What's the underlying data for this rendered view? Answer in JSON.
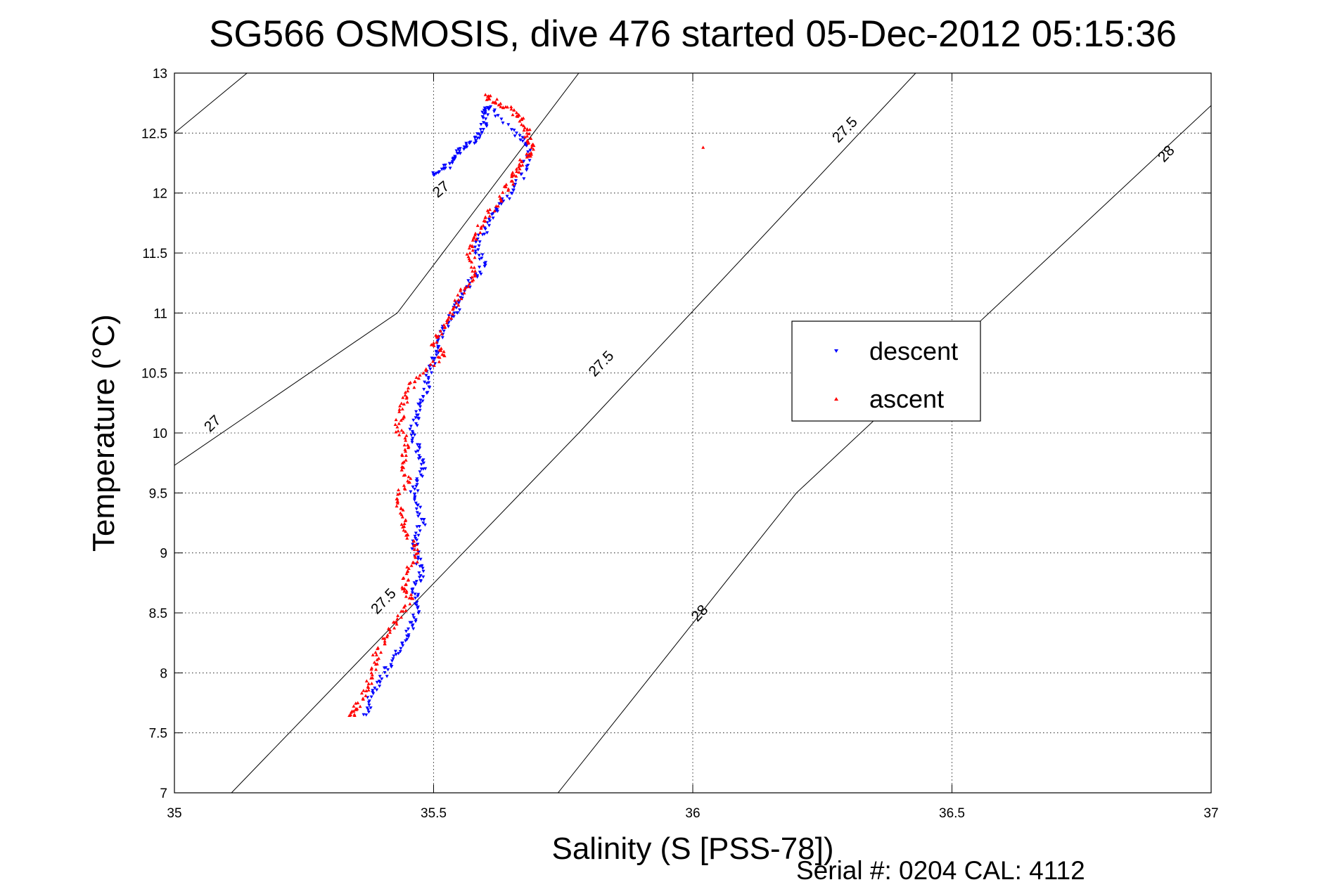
{
  "chart_data": {
    "type": "scatter",
    "title": "SG566 OSMOSIS, dive 476 started 05-Dec-2012 05:15:36",
    "xlabel": "Salinity (S [PSS-78])",
    "ylabel": "Temperature (°C)",
    "xlim": [
      35,
      37
    ],
    "ylim": [
      7,
      13
    ],
    "xticks": [
      35,
      35.5,
      36,
      36.5,
      37
    ],
    "xtick_labels": [
      "35",
      "35.5",
      "36",
      "36.5",
      "37"
    ],
    "yticks": [
      7,
      7.5,
      8,
      8.5,
      9,
      9.5,
      10,
      10.5,
      11,
      11.5,
      12,
      12.5,
      13
    ],
    "ytick_labels": [
      "7",
      "7.5",
      "8",
      "8.5",
      "9",
      "9.5",
      "10",
      "10.5",
      "11",
      "11.5",
      "12",
      "12.5",
      "13"
    ],
    "grid": true,
    "legend_position": "center-right",
    "footnote": "Serial #: 0204  CAL: 4112",
    "density_contours": [
      {
        "label": "27",
        "points": [
          [
            35.14,
            13
          ],
          [
            35,
            12.5
          ]
        ],
        "label_at": [
          35.52,
          12.0
        ]
      },
      {
        "label": "27",
        "points": [
          [
            35.78,
            13
          ],
          [
            35.43,
            11
          ],
          [
            35,
            9.73
          ]
        ],
        "label_at": [
          35.08,
          10.05
        ]
      },
      {
        "label": "27.5",
        "points": [
          [
            36.43,
            13
          ],
          [
            35.78,
            10
          ],
          [
            35.11,
            7
          ]
        ],
        "label_at": [
          36.3,
          12.5
        ],
        "label_at_2": [
          35.83,
          10.55
        ],
        "label_at_3": [
          35.41,
          8.57
        ]
      },
      {
        "label": "28",
        "points": [
          [
            37,
            12.73
          ],
          [
            36.2,
            9.5
          ],
          [
            35.74,
            7
          ]
        ],
        "label_at": [
          36.92,
          12.3
        ],
        "label_at_2": [
          36.02,
          8.47
        ]
      }
    ],
    "series": [
      {
        "name": "descent",
        "color": "#0000ff",
        "marker": "triangle-down",
        "points": [
          [
            35.5,
            12.15
          ],
          [
            35.52,
            12.2
          ],
          [
            35.54,
            12.28
          ],
          [
            35.55,
            12.35
          ],
          [
            35.57,
            12.42
          ],
          [
            35.59,
            12.48
          ],
          [
            35.6,
            12.58
          ],
          [
            35.6,
            12.68
          ],
          [
            35.61,
            12.72
          ],
          [
            35.66,
            12.5
          ],
          [
            35.68,
            12.4
          ],
          [
            35.68,
            12.2
          ],
          [
            35.65,
            12.0
          ],
          [
            35.62,
            11.85
          ],
          [
            35.6,
            11.7
          ],
          [
            35.58,
            11.55
          ],
          [
            35.6,
            11.4
          ],
          [
            35.57,
            11.25
          ],
          [
            35.55,
            11.1
          ],
          [
            35.54,
            11.0
          ],
          [
            35.52,
            10.85
          ],
          [
            35.51,
            10.72
          ],
          [
            35.5,
            10.6
          ],
          [
            35.49,
            10.45
          ],
          [
            35.48,
            10.3
          ],
          [
            35.47,
            10.15
          ],
          [
            35.46,
            10.0
          ],
          [
            35.47,
            9.85
          ],
          [
            35.48,
            9.7
          ],
          [
            35.46,
            9.55
          ],
          [
            35.47,
            9.4
          ],
          [
            35.48,
            9.25
          ],
          [
            35.46,
            9.1
          ],
          [
            35.47,
            8.95
          ],
          [
            35.48,
            8.8
          ],
          [
            35.46,
            8.7
          ],
          [
            35.47,
            8.55
          ],
          [
            35.46,
            8.4
          ],
          [
            35.44,
            8.25
          ],
          [
            35.42,
            8.1
          ],
          [
            35.4,
            7.95
          ],
          [
            35.38,
            7.8
          ],
          [
            35.37,
            7.65
          ]
        ]
      },
      {
        "name": "ascent",
        "color": "#ff0000",
        "marker": "triangle-up",
        "points": [
          [
            35.6,
            12.82
          ],
          [
            35.62,
            12.75
          ],
          [
            35.65,
            12.7
          ],
          [
            35.67,
            12.62
          ],
          [
            35.68,
            12.5
          ],
          [
            35.69,
            12.4
          ],
          [
            35.68,
            12.3
          ],
          [
            35.66,
            12.2
          ],
          [
            35.65,
            12.1
          ],
          [
            35.63,
            11.95
          ],
          [
            35.6,
            11.8
          ],
          [
            35.58,
            11.65
          ],
          [
            35.57,
            11.5
          ],
          [
            35.58,
            11.35
          ],
          [
            35.56,
            11.2
          ],
          [
            35.54,
            11.05
          ],
          [
            35.52,
            10.9
          ],
          [
            35.5,
            10.75
          ],
          [
            35.52,
            10.65
          ],
          [
            35.48,
            10.5
          ],
          [
            35.45,
            10.35
          ],
          [
            35.44,
            10.2
          ],
          [
            35.43,
            10.05
          ],
          [
            35.45,
            9.9
          ],
          [
            35.44,
            9.75
          ],
          [
            35.45,
            9.6
          ],
          [
            35.43,
            9.45
          ],
          [
            35.44,
            9.3
          ],
          [
            35.45,
            9.15
          ],
          [
            35.47,
            9.0
          ],
          [
            35.45,
            8.85
          ],
          [
            35.44,
            8.7
          ],
          [
            35.46,
            8.62
          ],
          [
            35.43,
            8.45
          ],
          [
            35.41,
            8.3
          ],
          [
            35.39,
            8.15
          ],
          [
            35.38,
            8.0
          ],
          [
            35.37,
            7.85
          ],
          [
            35.35,
            7.7
          ],
          [
            35.34,
            7.65
          ],
          [
            36.02,
            12.38
          ]
        ]
      }
    ]
  }
}
